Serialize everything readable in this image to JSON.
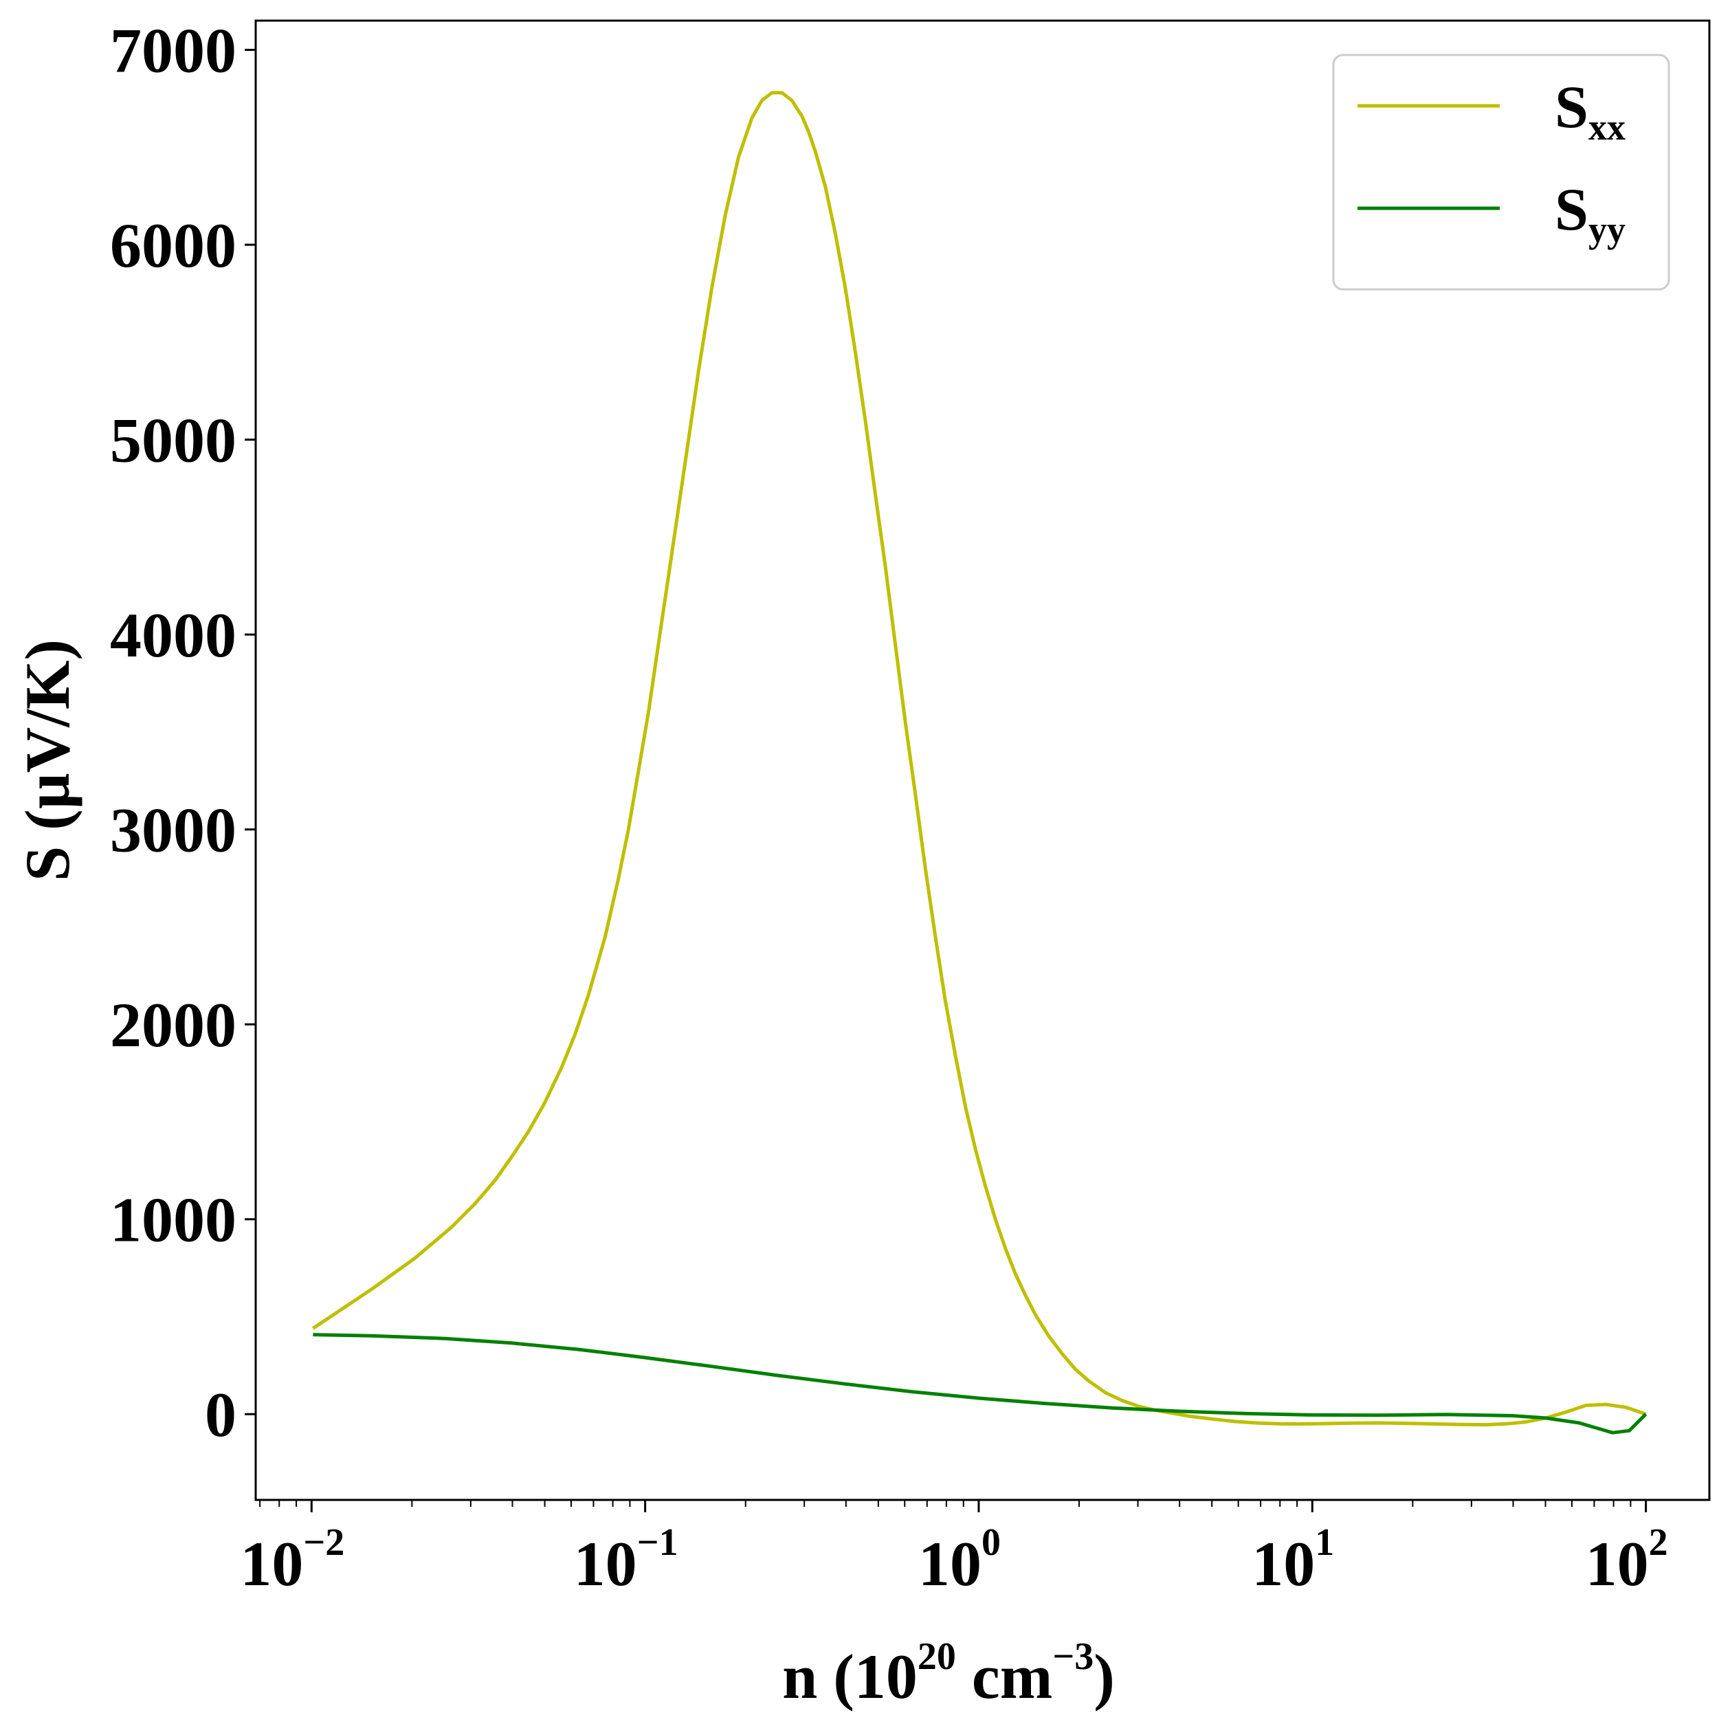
{
  "chart_data": {
    "type": "line",
    "xscale": "log",
    "xlim": [
      0.0068,
      155
    ],
    "ylim": [
      -440,
      7150
    ],
    "xlabel": {
      "base": "n (10",
      "exp1": "20",
      "mid": " cm",
      "exp2": "−3",
      "end": ")"
    },
    "ylabel": "S (µV/K)",
    "x_ticks": [
      {
        "value": 0.01,
        "base": "10",
        "exp": "−2"
      },
      {
        "value": 0.1,
        "base": "10",
        "exp": "−1"
      },
      {
        "value": 1,
        "base": "10",
        "exp": "0"
      },
      {
        "value": 10,
        "base": "10",
        "exp": "1"
      },
      {
        "value": 100,
        "base": "10",
        "exp": "2"
      }
    ],
    "y_ticks": [
      {
        "value": 0,
        "label": "0"
      },
      {
        "value": 1000,
        "label": "1000"
      },
      {
        "value": 2000,
        "label": "2000"
      },
      {
        "value": 3000,
        "label": "3000"
      },
      {
        "value": 4000,
        "label": "4000"
      },
      {
        "value": 5000,
        "label": "5000"
      },
      {
        "value": 6000,
        "label": "6000"
      },
      {
        "value": 7000,
        "label": "7000"
      }
    ],
    "grid": false,
    "legend_position": "top-right",
    "series": [
      {
        "key": "sxx",
        "name": "S",
        "name_sub": "xx",
        "color": "#bfbf00",
        "x": [
          0.0101,
          0.0151,
          0.0204,
          0.0263,
          0.0309,
          0.0355,
          0.0398,
          0.0447,
          0.0501,
          0.0562,
          0.0617,
          0.0676,
          0.0759,
          0.0832,
          0.0891,
          0.0955,
          0.1023,
          0.1096,
          0.1175,
          0.1259,
          0.1349,
          0.1445,
          0.1585,
          0.1738,
          0.1905,
          0.2089,
          0.2239,
          0.2399,
          0.257,
          0.2754,
          0.2951,
          0.309,
          0.3236,
          0.3467,
          0.3715,
          0.3981,
          0.4266,
          0.4571,
          0.4898,
          0.5248,
          0.5623,
          0.6026,
          0.6457,
          0.6918,
          0.7413,
          0.7943,
          0.8511,
          0.912,
          0.9772,
          1.0471,
          1.122,
          1.2023,
          1.2882,
          1.3804,
          1.4791,
          1.6218,
          1.7783,
          1.9498,
          2.138,
          2.3988,
          2.6915,
          3.02,
          3.3884,
          3.8019,
          4.2658,
          5.0119,
          5.8884,
          6.9183,
          8.1283,
          9.5499,
          11.2202,
          13.1826,
          15.8489,
          19.0546,
          22.9087,
          27.5423,
          33.1131,
          38.0189,
          43.6516,
          50.1187,
          57.544,
          66.0693,
          75.8578,
          87.0964,
          100.0
        ],
        "y": [
          440,
          640,
          800,
          960,
          1080,
          1200,
          1320,
          1450,
          1600,
          1780,
          1950,
          2150,
          2450,
          2750,
          3000,
          3300,
          3600,
          3950,
          4300,
          4650,
          5000,
          5350,
          5780,
          6150,
          6450,
          6650,
          6740,
          6780,
          6780,
          6740,
          6660,
          6580,
          6480,
          6300,
          6060,
          5780,
          5450,
          5100,
          4720,
          4350,
          3950,
          3550,
          3180,
          2800,
          2450,
          2120,
          1840,
          1580,
          1360,
          1170,
          1000,
          850,
          720,
          610,
          510,
          400,
          310,
          230,
          170,
          110,
          70,
          40,
          20,
          5,
          -10,
          -25,
          -38,
          -46,
          -50,
          -50,
          -48,
          -46,
          -45,
          -47,
          -50,
          -53,
          -54,
          -50,
          -40,
          -20,
          10,
          45,
          50,
          35,
          0
        ]
      },
      {
        "key": "syy",
        "name": "S",
        "name_sub": "yy",
        "color": "#008000",
        "x": [
          0.0101,
          0.0151,
          0.0251,
          0.0398,
          0.0631,
          0.1,
          0.1585,
          0.2512,
          0.3981,
          0.631,
          1.0,
          1.5849,
          2.5119,
          3.9811,
          6.3096,
          10.0,
          15.8489,
          25.1189,
          39.8107,
          50.1187,
          63.0957,
          70.7946,
          79.4328,
          89.1251,
          100.0
        ],
        "y": [
          408,
          402,
          388,
          365,
          332,
          290,
          245,
          198,
          155,
          115,
          82,
          55,
          32,
          15,
          3,
          -4,
          -5,
          -2,
          -8,
          -20,
          -45,
          -70,
          -95,
          -85,
          0
        ]
      }
    ]
  }
}
